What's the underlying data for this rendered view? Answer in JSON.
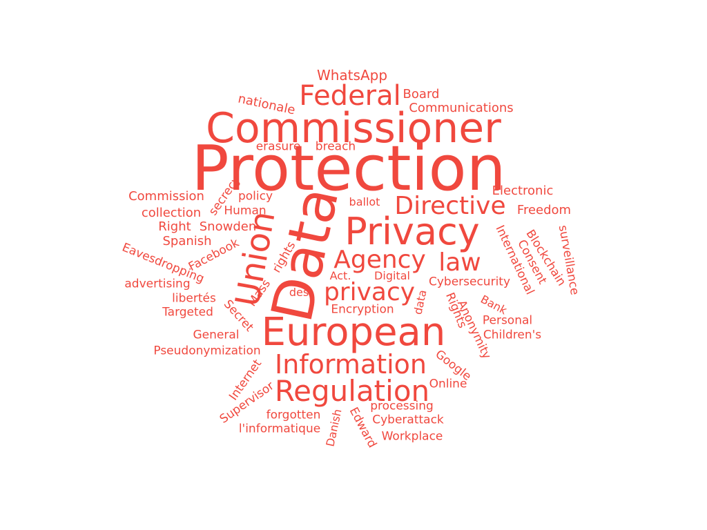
{
  "color": "#f0483e",
  "words": [
    {
      "text": "Protection"
    },
    {
      "text": "Data"
    },
    {
      "text": "Commissioner"
    },
    {
      "text": "European"
    },
    {
      "text": "Privacy"
    },
    {
      "text": "Union"
    },
    {
      "text": "Regulation"
    },
    {
      "text": "Information"
    },
    {
      "text": "Federal"
    },
    {
      "text": "Directive"
    },
    {
      "text": "Agency"
    },
    {
      "text": "privacy"
    },
    {
      "text": "law"
    },
    {
      "text": "WhatsApp"
    },
    {
      "text": "Board"
    },
    {
      "text": "Communications"
    },
    {
      "text": "nationale"
    },
    {
      "text": "erasure"
    },
    {
      "text": "breach"
    },
    {
      "text": "Electronic"
    },
    {
      "text": "Commission"
    },
    {
      "text": "policy"
    },
    {
      "text": "ballot"
    },
    {
      "text": "Freedom"
    },
    {
      "text": "secrecy"
    },
    {
      "text": "collection"
    },
    {
      "text": "Human"
    },
    {
      "text": "Right"
    },
    {
      "text": "Snowden"
    },
    {
      "text": "Spanish"
    },
    {
      "text": "International"
    },
    {
      "text": "Consent"
    },
    {
      "text": "Blockchain"
    },
    {
      "text": "surveillance"
    },
    {
      "text": "Facebook"
    },
    {
      "text": "Eavesdropping"
    },
    {
      "text": "Mass"
    },
    {
      "text": "rights"
    },
    {
      "text": "Act."
    },
    {
      "text": "Digital"
    },
    {
      "text": "Cybersecurity"
    },
    {
      "text": "advertising"
    },
    {
      "text": "des"
    },
    {
      "text": "libertés"
    },
    {
      "text": "data"
    },
    {
      "text": "Rights"
    },
    {
      "text": "Bank"
    },
    {
      "text": "Targeted"
    },
    {
      "text": "Secret"
    },
    {
      "text": "Encryption"
    },
    {
      "text": "Anonymity"
    },
    {
      "text": "Personal"
    },
    {
      "text": "General"
    },
    {
      "text": "Children's"
    },
    {
      "text": "Pseudonymization"
    },
    {
      "text": "Google"
    },
    {
      "text": "Internet"
    },
    {
      "text": "Online"
    },
    {
      "text": "Supervisor"
    },
    {
      "text": "processing"
    },
    {
      "text": "forgotten"
    },
    {
      "text": "Danish"
    },
    {
      "text": "Edward"
    },
    {
      "text": "Cyberattack"
    },
    {
      "text": "l'informatique"
    },
    {
      "text": "Workplace"
    }
  ]
}
